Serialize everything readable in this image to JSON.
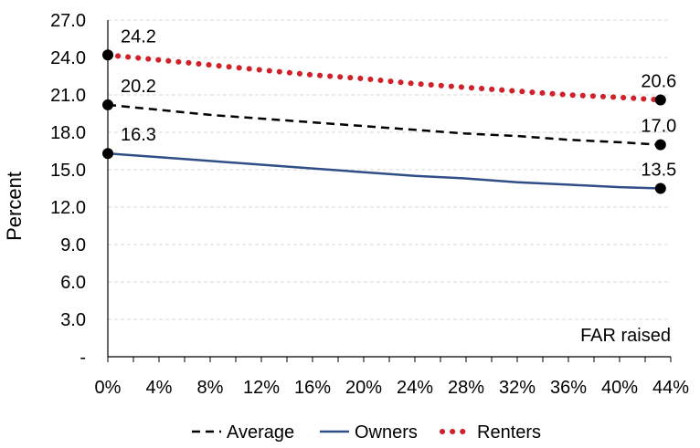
{
  "chart_data": {
    "type": "line",
    "xlabel": "",
    "ylabel": "Percent",
    "annotation": "FAR raised",
    "x_ticks": [
      "0%",
      "4%",
      "8%",
      "12%",
      "16%",
      "20%",
      "24%",
      "28%",
      "32%",
      "36%",
      "40%",
      "44%"
    ],
    "y_ticks": [
      "-",
      "3.0",
      "6.0",
      "9.0",
      "12.0",
      "15.0",
      "18.0",
      "21.0",
      "24.0",
      "27.0"
    ],
    "xlim": [
      0,
      44
    ],
    "ylim": [
      0,
      27
    ],
    "grid": "horizontal-dashed",
    "legend_position": "bottom",
    "series": [
      {
        "name": "Average",
        "style": "dashed",
        "color": "#000000",
        "x": [
          0,
          4,
          8,
          12,
          16,
          20,
          24,
          28,
          32,
          36,
          40,
          43.2
        ],
        "y": [
          20.2,
          19.8,
          19.4,
          19.1,
          18.8,
          18.5,
          18.2,
          17.9,
          17.7,
          17.4,
          17.2,
          17.0
        ],
        "endpoint_labels": [
          "20.2",
          "17.0"
        ]
      },
      {
        "name": "Owners",
        "style": "solid",
        "color": "#2f4f86",
        "x": [
          0,
          4,
          8,
          12,
          16,
          20,
          24,
          28,
          32,
          36,
          40,
          43.2
        ],
        "y": [
          16.3,
          16.0,
          15.7,
          15.4,
          15.1,
          14.8,
          14.5,
          14.3,
          14.0,
          13.8,
          13.6,
          13.5
        ],
        "endpoint_labels": [
          "16.3",
          "13.5"
        ]
      },
      {
        "name": "Renters",
        "style": "dotted",
        "color": "#d0202a",
        "x": [
          0,
          4,
          8,
          12,
          16,
          20,
          24,
          28,
          32,
          36,
          40,
          43.2
        ],
        "y": [
          24.2,
          23.8,
          23.4,
          23.0,
          22.6,
          22.3,
          21.9,
          21.6,
          21.3,
          21.0,
          20.8,
          20.6
        ],
        "endpoint_labels": [
          "24.2",
          "20.6"
        ]
      }
    ]
  }
}
